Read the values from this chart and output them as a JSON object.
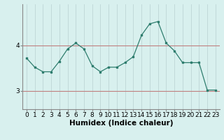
{
  "x": [
    0,
    1,
    2,
    3,
    4,
    5,
    6,
    7,
    8,
    9,
    10,
    11,
    12,
    13,
    14,
    15,
    16,
    17,
    18,
    19,
    20,
    21,
    22,
    23
  ],
  "y": [
    3.72,
    3.52,
    3.42,
    3.42,
    3.65,
    3.92,
    4.05,
    3.92,
    3.55,
    3.42,
    3.52,
    3.52,
    3.62,
    3.75,
    4.22,
    4.47,
    4.52,
    4.05,
    3.88,
    3.62,
    3.62,
    3.62,
    3.02,
    3.02
  ],
  "xlabel": "Humidex (Indice chaleur)",
  "yticks": [
    3,
    4
  ],
  "ylim": [
    2.6,
    4.9
  ],
  "xlim": [
    -0.5,
    23.5
  ],
  "line_color": "#2e7d6e",
  "marker_color": "#2e7d6e",
  "bg_color": "#d8f0ee",
  "grid_color_major": "#c08080",
  "grid_color_minor": "#b8d0d0",
  "xlabel_fontsize": 7.5,
  "tick_fontsize": 6.5
}
